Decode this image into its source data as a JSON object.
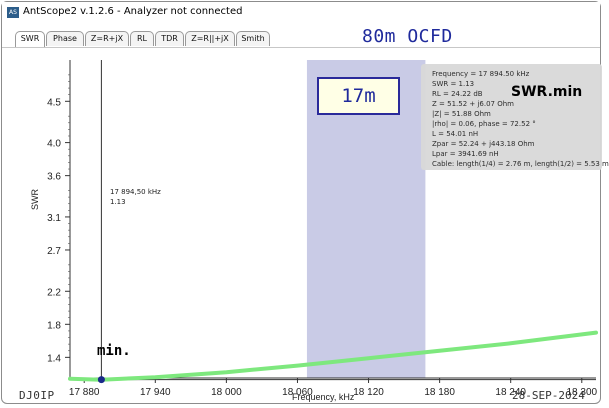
{
  "window": {
    "title": "AntScope2 v.1.2.6 - Analyzer not connected",
    "icon": "antscope-app-icon"
  },
  "tabs": [
    {
      "label": "SWR",
      "active": true
    },
    {
      "label": "Phase"
    },
    {
      "label": "Z=R+jX"
    },
    {
      "label": "RL"
    },
    {
      "label": "TDR"
    },
    {
      "label": "Z=R||+jX"
    },
    {
      "label": "Smith"
    }
  ],
  "banner_title": "80m OCFD",
  "band_label": "17m",
  "swr_min_label": "SWR.min",
  "min_label": "min.",
  "callsign": "DJ0IP",
  "date": "28-SEP-2024",
  "marker_readout": {
    "frequency": "17 894,50 kHz",
    "swr": "1.13"
  },
  "info_box": [
    "Frequency = 17 894.50 kHz",
    "SWR = 1.13",
    "RL = 24.22 dB",
    "Z = 51.52 + j6.07 Ohm",
    "|Z| = 51.88 Ohm",
    "|rho| = 0.06, phase = 72.52 °",
    "L = 54.01 nH",
    "Zpar = 52.24 + j443.18 Ohm",
    "Lpar = 3941.69 nH",
    "Cable: length(1/4) = 2.76 m, length(1/2) = 5.53 m"
  ],
  "colors": {
    "curve": "#7ee87e",
    "band_shade": "#c9cbe6",
    "banner_text": "#1f2a9c",
    "marker_dot": "#1a2a8a"
  },
  "chart_data": {
    "type": "line",
    "xlabel": "Frequency, kHz",
    "ylabel": "SWR",
    "xlim": [
      17868,
      18312
    ],
    "ylim": [
      1.15,
      5.0
    ],
    "x_ticks": [
      "17 880",
      "17 940",
      "18 000",
      "18 060",
      "18 120",
      "18 180",
      "18 240",
      "18 300"
    ],
    "y_ticks": [
      "1.4",
      "1.8",
      "2.2",
      "2.7",
      "3.1",
      "3.6",
      "4.0",
      "4.5"
    ],
    "band_highlight": [
      18068,
      18168
    ],
    "marker": {
      "x": 17894.5,
      "y": 1.13
    },
    "series": [
      {
        "x": [
          17868,
          17894.5,
          17940,
          18000,
          18060,
          18120,
          18180,
          18240,
          18312
        ],
        "y": [
          1.14,
          1.13,
          1.16,
          1.22,
          1.3,
          1.39,
          1.48,
          1.57,
          1.7
        ]
      }
    ]
  }
}
